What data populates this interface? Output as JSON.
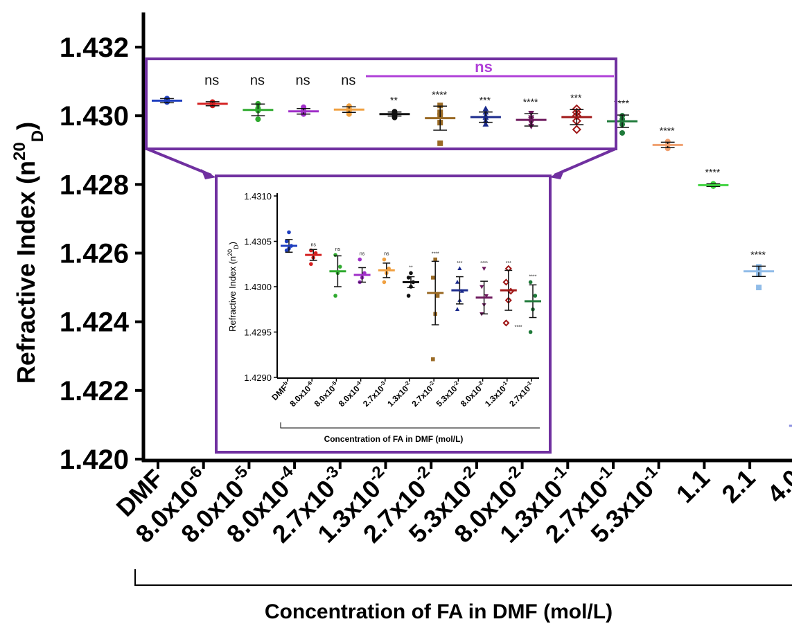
{
  "chart_data": [
    {
      "type": "scatter",
      "ylabel_main": "Refractive Index (n",
      "ylabel_sup": "20",
      "ylabel_sub": "D",
      "ylabel_end": ")",
      "xlabel": "Concentration of FA in DMF (mol/L)",
      "ylim": [
        1.42,
        1.433
      ],
      "yticks": [
        "1.420",
        "1.422",
        "1.424",
        "1.426",
        "1.428",
        "1.430",
        "1.432"
      ],
      "ytick_values": [
        1.42,
        1.422,
        1.424,
        1.426,
        1.428,
        1.43,
        1.432
      ],
      "categories": [
        {
          "base": "DMF",
          "exp": ""
        },
        {
          "base": "8.0x10",
          "exp": "-6"
        },
        {
          "base": "8.0x10",
          "exp": "-5"
        },
        {
          "base": "8.0x10",
          "exp": "-4"
        },
        {
          "base": "2.7x10",
          "exp": "-3"
        },
        {
          "base": "1.3x10",
          "exp": "-2"
        },
        {
          "base": "2.7x10",
          "exp": "-2"
        },
        {
          "base": "5.3x10",
          "exp": "-2"
        },
        {
          "base": "8.0x10",
          "exp": "-2"
        },
        {
          "base": "1.3x10",
          "exp": "-1"
        },
        {
          "base": "2.7x10",
          "exp": "-1"
        },
        {
          "base": "5.3x10",
          "exp": "-1"
        },
        {
          "base": "1.1",
          "exp": ""
        },
        {
          "base": "2.1",
          "exp": ""
        },
        {
          "base": "4.0",
          "exp": ""
        }
      ],
      "series": [
        {
          "mean": 1.43044,
          "sd": 6e-05,
          "points": [
            1.4304,
            1.43042,
            1.43045,
            1.43047,
            1.4305
          ],
          "color": "#1f3fbf",
          "marker": "circle",
          "sig": ""
        },
        {
          "mean": 1.43035,
          "sd": 6e-05,
          "points": [
            1.4303,
            1.43034,
            1.43037,
            1.4304
          ],
          "color": "#d42020",
          "marker": "circle",
          "sig": "ns"
        },
        {
          "mean": 1.43017,
          "sd": 0.00017,
          "points": [
            1.4299,
            1.43015,
            1.43022,
            1.43035
          ],
          "color": "#2faa2f",
          "marker": "circle",
          "sig": "ns"
        },
        {
          "mean": 1.43013,
          "sd": 8e-05,
          "points": [
            1.43005,
            1.4301,
            1.43015,
            1.43025
          ],
          "color": "#a030c8",
          "marker": "circle",
          "sig": "ns"
        },
        {
          "mean": 1.43018,
          "sd": 8e-05,
          "points": [
            1.43005,
            1.43015,
            1.4302,
            1.43028
          ],
          "color": "#f0a040",
          "marker": "circle",
          "sig": "ns"
        },
        {
          "mean": 1.43005,
          "sd": 6e-05,
          "points": [
            1.42995,
            1.43,
            1.43003,
            1.43006,
            1.43009,
            1.43012
          ],
          "color": "#111111",
          "marker": "circle",
          "sig": "**"
        },
        {
          "mean": 1.42993,
          "sd": 0.00035,
          "points": [
            1.4292,
            1.4298,
            1.43,
            1.4301,
            1.4303
          ],
          "color": "#9a6a25",
          "marker": "square",
          "sig": "****"
        },
        {
          "mean": 1.42996,
          "sd": 0.00015,
          "points": [
            1.42975,
            1.42985,
            1.42995,
            1.43,
            1.4301,
            1.4302
          ],
          "color": "#1a2a8c",
          "marker": "triangle-up",
          "sig": "***"
        },
        {
          "mean": 1.42988,
          "sd": 0.00018,
          "points": [
            1.4297,
            1.4298,
            1.4299,
            1.42995,
            1.43008
          ],
          "color": "#6e1a5e",
          "marker": "triangle-down",
          "sig": "****"
        },
        {
          "mean": 1.42996,
          "sd": 0.00022,
          "points": [
            1.4296,
            1.42985,
            1.43,
            1.4301,
            1.4302
          ],
          "color": "#a01818",
          "marker": "diamond",
          "sig": "***"
        },
        {
          "mean": 1.42984,
          "sd": 0.00018,
          "points": [
            1.4295,
            1.42975,
            1.4299,
            1.43
          ],
          "color": "#1f7a3a",
          "marker": "circle",
          "sig": "****"
        },
        {
          "mean": 1.42915,
          "sd": 8e-05,
          "points": [
            1.42905,
            1.42915,
            1.42925
          ],
          "color": "#f0a070",
          "marker": "circle",
          "sig": "****"
        },
        {
          "mean": 1.42798,
          "sd": 4e-05,
          "points": [
            1.42795,
            1.42798,
            1.428,
            1.42802
          ],
          "color": "#3fd23f",
          "marker": "circle",
          "sig": "****"
        },
        {
          "mean": 1.42547,
          "sd": 0.00015,
          "points": [
            1.425,
            1.4254,
            1.42555,
            1.4256
          ],
          "color": "#90bce8",
          "marker": "square",
          "sig": "****"
        },
        {
          "mean": 1.42097,
          "sd": 8e-05,
          "points": [
            1.4209,
            1.42095,
            1.421,
            1.42105
          ],
          "color": "#8a8fe0",
          "marker": "circle",
          "sig": "****"
        }
      ],
      "bracket_label": "ns",
      "bracket_color": "#b040d8",
      "box_color": "#7030a0"
    },
    {
      "type": "scatter",
      "ylabel_main": "Refractive Index (n",
      "ylabel_sup": "20",
      "ylabel_sub": "D",
      "ylabel_end": ")",
      "xlabel": "Concentration of FA in DMF (mol/L)",
      "ylim": [
        1.429,
        1.431
      ],
      "yticks": [
        "1.4290",
        "1.4295",
        "1.4300",
        "1.4305",
        "1.4310"
      ],
      "ytick_values": [
        1.429,
        1.4295,
        1.43,
        1.4305,
        1.431
      ],
      "categories": [
        {
          "base": "DMF",
          "exp": "b"
        },
        {
          "base": "8.0x10",
          "exp": "-6"
        },
        {
          "base": "8.0x10",
          "exp": "-5"
        },
        {
          "base": "8.0x10",
          "exp": "-4"
        },
        {
          "base": "2.7x10",
          "exp": "-3"
        },
        {
          "base": "1.3x10",
          "exp": "-2"
        },
        {
          "base": "2.7x10",
          "exp": "-2"
        },
        {
          "base": "5.3x10",
          "exp": "-2"
        },
        {
          "base": "8.0x10",
          "exp": "-2"
        },
        {
          "base": "1.3x10",
          "exp": "-1"
        },
        {
          "base": "2.7x10",
          "exp": "-1"
        }
      ],
      "series": [
        {
          "mean": 1.43045,
          "sd": 7e-05,
          "points": [
            1.4304,
            1.43042,
            1.43045,
            1.4305,
            1.4306
          ],
          "color": "#1f3fbf",
          "marker": "circle",
          "sig": ""
        },
        {
          "mean": 1.43035,
          "sd": 6e-05,
          "points": [
            1.43025,
            1.43032,
            1.43037,
            1.4304
          ],
          "color": "#d42020",
          "marker": "circle",
          "sig": "ns"
        },
        {
          "mean": 1.43017,
          "sd": 0.00017,
          "points": [
            1.4299,
            1.43015,
            1.43022,
            1.43035
          ],
          "color": "#2faa2f",
          "marker": "circle",
          "sig": "ns"
        },
        {
          "mean": 1.43013,
          "sd": 8e-05,
          "points": [
            1.43005,
            1.4301,
            1.43015,
            1.4303
          ],
          "color": "#a030c8",
          "marker": "circle",
          "sig": "ns"
        },
        {
          "mean": 1.43018,
          "sd": 8e-05,
          "points": [
            1.43005,
            1.43015,
            1.4302,
            1.4303
          ],
          "color": "#f0a040",
          "marker": "circle",
          "sig": "ns"
        },
        {
          "mean": 1.43005,
          "sd": 6e-05,
          "points": [
            1.4299,
            1.43,
            1.43005,
            1.4301,
            1.43015
          ],
          "color": "#111111",
          "marker": "circle",
          "sig": "**"
        },
        {
          "mean": 1.42993,
          "sd": 0.00035,
          "points": [
            1.4292,
            1.4297,
            1.4299,
            1.4301,
            1.4303
          ],
          "color": "#9a6a25",
          "marker": "square",
          "sig": "****"
        },
        {
          "mean": 1.42996,
          "sd": 0.00015,
          "points": [
            1.42975,
            1.42985,
            1.42995,
            1.43005,
            1.4302
          ],
          "color": "#1a2a8c",
          "marker": "triangle-up",
          "sig": "***"
        },
        {
          "mean": 1.42988,
          "sd": 0.00018,
          "points": [
            1.4297,
            1.4298,
            1.4299,
            1.43,
            1.4302
          ],
          "color": "#6e1a5e",
          "marker": "triangle-down",
          "sig": "****"
        },
        {
          "mean": 1.42996,
          "sd": 0.00022,
          "points": [
            1.4296,
            1.42985,
            1.42995,
            1.43005,
            1.4302
          ],
          "color": "#a01818",
          "marker": "diamond",
          "sig": "***"
        },
        {
          "mean": 1.42984,
          "sd": 0.00018,
          "points": [
            1.4295,
            1.42975,
            1.4299,
            1.43005
          ],
          "color": "#1f7a3a",
          "marker": "circle",
          "sig": "****"
        }
      ],
      "extra_label": "****"
    }
  ]
}
